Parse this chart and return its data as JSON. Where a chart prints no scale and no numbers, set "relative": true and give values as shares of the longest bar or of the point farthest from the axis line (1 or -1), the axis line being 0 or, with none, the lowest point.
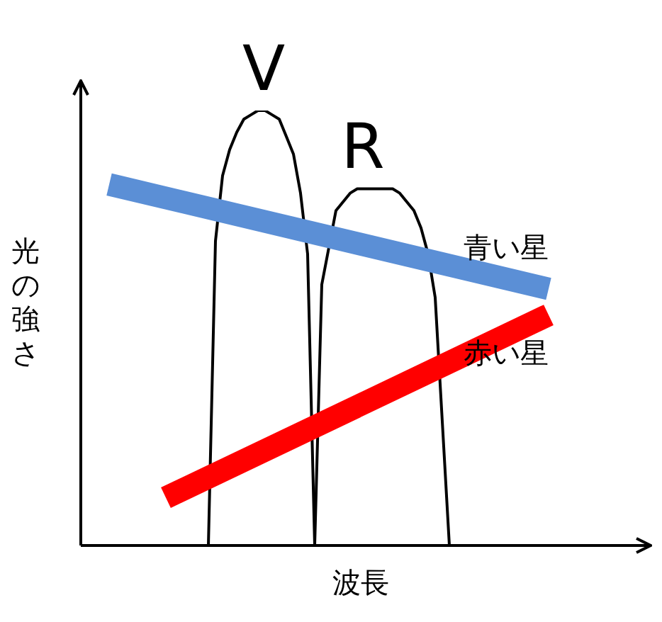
{
  "chart_data": {
    "type": "line",
    "relative": true,
    "marker": "none",
    "xlabel": "波長",
    "ylabel": "光の強さ",
    "categories": [
      null,
      null,
      null,
      null,
      null,
      null,
      null,
      null,
      null,
      null,
      null,
      null,
      null,
      null,
      null,
      null,
      null,
      null,
      null,
      null,
      null,
      null,
      null,
      null,
      null,
      null,
      null,
      null,
      null,
      null,
      null,
      null,
      null,
      null,
      null,
      null,
      null,
      null,
      null,
      null,
      null,
      null,
      null,
      null,
      null,
      null,
      null,
      null,
      null,
      null,
      null,
      null,
      null,
      null,
      null,
      null,
      null,
      null,
      null,
      null,
      null,
      null,
      null,
      null,
      null,
      null,
      null,
      null,
      null,
      null,
      null,
      null,
      null,
      null,
      null,
      null,
      null,
      null,
      null,
      null
    ],
    "series": [
      {
        "name": "青い星",
        "color": "#5b8fd6",
        "values": [
          null,
          null,
          null,
          null,
          0.83,
          null,
          null,
          null,
          null,
          null,
          null,
          null,
          null,
          null,
          null,
          null,
          null,
          null,
          null,
          null,
          null,
          null,
          null,
          null,
          null,
          null,
          null,
          null,
          null,
          null,
          null,
          null,
          null,
          null,
          null,
          null,
          null,
          null,
          null,
          null,
          null,
          null,
          null,
          null,
          null,
          null,
          null,
          null,
          null,
          null,
          null,
          null,
          null,
          null,
          null,
          null,
          null,
          null,
          null,
          null,
          null,
          null,
          null,
          null,
          null,
          null,
          0.59,
          null,
          null,
          null,
          null,
          null,
          null,
          null,
          null,
          null,
          null,
          null,
          null,
          null
        ]
      },
      {
        "name": "赤い星",
        "color": "#ff0000",
        "values": [
          null,
          null,
          null,
          null,
          null,
          null,
          null,
          null,
          null,
          null,
          null,
          null,
          0.11,
          null,
          null,
          null,
          null,
          null,
          null,
          null,
          null,
          null,
          null,
          null,
          null,
          null,
          null,
          null,
          null,
          null,
          null,
          null,
          null,
          null,
          null,
          null,
          null,
          null,
          null,
          null,
          null,
          null,
          null,
          null,
          null,
          null,
          null,
          null,
          null,
          null,
          null,
          null,
          null,
          null,
          null,
          null,
          null,
          null,
          null,
          null,
          null,
          null,
          null,
          null,
          null,
          null,
          0.53,
          null,
          null,
          null,
          null,
          null,
          null,
          null,
          null,
          null,
          null,
          null,
          null,
          null
        ]
      },
      {
        "name": "V",
        "color": "#000000",
        "values": [
          null,
          null,
          null,
          null,
          null,
          null,
          null,
          null,
          null,
          null,
          null,
          null,
          null,
          null,
          null,
          null,
          null,
          null,
          0,
          0.7,
          0.85,
          0.91,
          0.95,
          0.98,
          0.99,
          1,
          1,
          0.99,
          0.98,
          0.94,
          0.9,
          0.81,
          0.67,
          0,
          null,
          null,
          null,
          null,
          null,
          null,
          null,
          null,
          null,
          null,
          null,
          null,
          null,
          null,
          null,
          null,
          null,
          null,
          null,
          null,
          null,
          null,
          null,
          null,
          null,
          null,
          null,
          null,
          null,
          null,
          null,
          null,
          null,
          null,
          null,
          null,
          null,
          null,
          null,
          null,
          null,
          null,
          null,
          null,
          null,
          null
        ]
      },
      {
        "name": "R",
        "color": "#000000",
        "values": [
          null,
          null,
          null,
          null,
          null,
          null,
          null,
          null,
          null,
          null,
          null,
          null,
          null,
          null,
          null,
          null,
          null,
          null,
          null,
          null,
          null,
          null,
          null,
          null,
          null,
          null,
          null,
          null,
          null,
          null,
          null,
          null,
          null,
          0,
          0.6,
          null,
          0.77,
          0.79,
          0.81,
          0.82,
          0.82,
          0.82,
          0.82,
          0.82,
          0.82,
          0.81,
          0.79,
          0.77,
          0.73,
          0.67,
          0.57,
          null,
          0,
          null,
          null,
          null,
          null,
          null,
          null,
          null,
          null,
          null,
          null,
          null,
          null,
          null,
          null,
          null,
          null,
          null,
          null,
          null,
          null,
          null,
          null,
          null,
          null,
          null,
          null,
          null
        ]
      }
    ]
  }
}
